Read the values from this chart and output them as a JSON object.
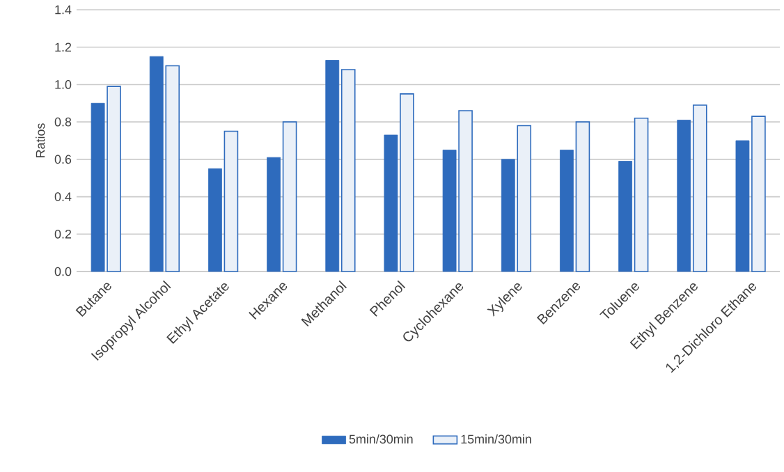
{
  "chart_data": {
    "type": "bar",
    "ylabel": "Ratios",
    "categories": [
      "Butane",
      "Isopropyl Alcohol",
      "Ethyl Acetate",
      "Hexane",
      "Methanol",
      "Phenol",
      "Cyclohexane",
      "Xylene",
      "Benzene",
      "Toluene",
      "Ethyl Benzene",
      "1,2-Dichloro Ethane"
    ],
    "series": [
      {
        "name": "5min/30min",
        "color": "#2e6bbd",
        "values": [
          0.9,
          1.15,
          0.55,
          0.61,
          1.13,
          0.73,
          0.65,
          0.6,
          0.65,
          0.59,
          0.81,
          0.7
        ]
      },
      {
        "name": "15min/30min",
        "color": "#2e6bbd",
        "values": [
          0.99,
          1.1,
          0.75,
          0.8,
          1.08,
          0.95,
          0.86,
          0.78,
          0.8,
          0.82,
          0.89,
          0.83
        ]
      }
    ],
    "ylim": [
      0,
      1.4
    ],
    "yticks": [
      {
        "value": 0,
        "label": "0.0"
      },
      {
        "value": 0.2,
        "label": "0.2"
      },
      {
        "value": 0.4,
        "label": "0.4"
      },
      {
        "value": 0.6,
        "label": "0.6"
      },
      {
        "value": 0.8,
        "label": "0.8"
      },
      {
        "value": 1.0,
        "label": "1.0"
      },
      {
        "value": 1.2,
        "label": "1.2"
      },
      {
        "value": 1.4,
        "label": "1.4"
      }
    ],
    "grid": "y",
    "legend": "bottom"
  }
}
